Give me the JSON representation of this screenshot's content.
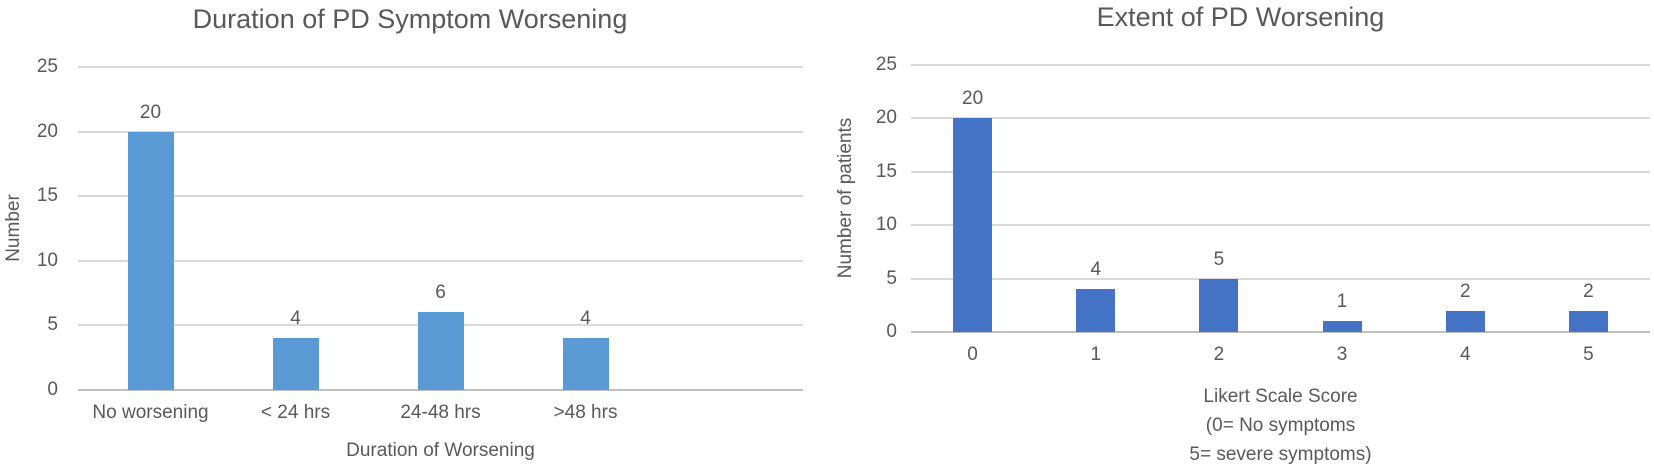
{
  "colors": {
    "background": "#FFFFFF",
    "title_text": "#595959",
    "axis_text": "#595959",
    "gridline": "#D9D9D9",
    "axis_line": "#BFBFBF",
    "left_bar_fill": "#5B9BD5",
    "right_bar_fill": "#4472C4"
  },
  "chart_data": [
    {
      "type": "bar",
      "title": "Duration of PD Symptom Worsening",
      "categories": [
        "No worsening",
        "< 24 hrs",
        "24-48 hrs",
        ">48 hrs"
      ],
      "values": [
        20,
        4,
        6,
        4
      ],
      "xlabel": "Duration of Worsening",
      "ylabel": "Number",
      "ylim": [
        0,
        25
      ],
      "yticks": [
        0,
        5,
        10,
        15,
        20,
        25
      ],
      "x_slots": 5,
      "grid": "horizontal",
      "legend": "none",
      "data_labels_shown": true,
      "bar_color": "#5B9BD5"
    },
    {
      "type": "bar",
      "title": "Extent of PD Worsening",
      "categories": [
        "0",
        "1",
        "2",
        "3",
        "4",
        "5"
      ],
      "values": [
        20,
        4,
        5,
        1,
        2,
        2
      ],
      "xlabel": "Likert Scale Score\n(0= No symptoms\n5= severe symptoms)",
      "ylabel": "Number of patients",
      "ylim": [
        0,
        25
      ],
      "yticks": [
        0,
        5,
        10,
        15,
        20,
        25
      ],
      "x_slots": 6,
      "grid": "horizontal",
      "legend": "none",
      "data_labels_shown": true,
      "bar_color": "#4472C4"
    }
  ]
}
